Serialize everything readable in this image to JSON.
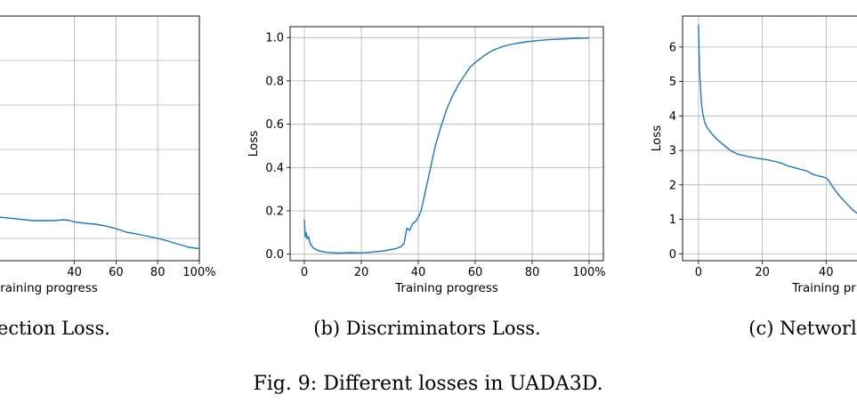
{
  "figure": {
    "caption": "Fig. 9: Different losses in UADA3D."
  },
  "chart_data": [
    {
      "type": "line",
      "title": "",
      "subcaption": "section Loss.",
      "xlabel": "raining progress",
      "ylabel": "",
      "xlim": [
        0,
        100
      ],
      "ylim": [
        0,
        5.5
      ],
      "x_ticks": [
        40,
        60,
        80,
        100
      ],
      "x_tick_labels": [
        "40",
        "60",
        "80",
        "100%"
      ],
      "y_ticks": [],
      "y_tick_labels": [],
      "grid": true,
      "series": [
        {
          "name": "Detection Loss",
          "x": [
            0,
            20,
            30,
            35,
            38,
            40,
            45,
            50,
            55,
            60,
            65,
            70,
            75,
            80,
            85,
            90,
            95,
            100
          ],
          "y": [
            1.0,
            0.9,
            0.9,
            0.92,
            0.9,
            0.87,
            0.84,
            0.82,
            0.78,
            0.72,
            0.64,
            0.6,
            0.55,
            0.5,
            0.44,
            0.37,
            0.3,
            0.27
          ]
        }
      ]
    },
    {
      "type": "line",
      "title": "",
      "subcaption": "(b) Discriminators Loss.",
      "xlabel": "Training progress",
      "ylabel": "Loss",
      "xlim": [
        -5,
        105
      ],
      "ylim": [
        -0.03,
        1.05
      ],
      "x_ticks": [
        0,
        20,
        40,
        60,
        80,
        100
      ],
      "x_tick_labels": [
        "0",
        "20",
        "40",
        "60",
        "80",
        "100%"
      ],
      "y_ticks": [
        0.0,
        0.2,
        0.4,
        0.6,
        0.8,
        1.0
      ],
      "y_tick_labels": [
        "0.0",
        "0.2",
        "0.4",
        "0.6",
        "0.8",
        "1.0"
      ],
      "grid": true,
      "series": [
        {
          "name": "Discriminators Loss",
          "x": [
            0,
            0.3,
            0.6,
            1,
            1.5,
            2,
            3,
            5,
            8,
            12,
            16,
            20,
            24,
            28,
            32,
            34,
            35,
            36,
            37,
            38,
            39,
            40,
            41,
            42,
            44,
            46,
            48,
            50,
            52,
            54,
            56,
            58,
            60,
            63,
            66,
            70,
            74,
            78,
            82,
            86,
            90,
            95,
            100
          ],
          "y": [
            0.16,
            0.08,
            0.1,
            0.07,
            0.08,
            0.05,
            0.03,
            0.015,
            0.008,
            0.005,
            0.007,
            0.006,
            0.01,
            0.015,
            0.025,
            0.035,
            0.05,
            0.12,
            0.11,
            0.14,
            0.15,
            0.17,
            0.2,
            0.26,
            0.38,
            0.5,
            0.59,
            0.67,
            0.73,
            0.78,
            0.82,
            0.86,
            0.885,
            0.915,
            0.94,
            0.96,
            0.972,
            0.98,
            0.986,
            0.99,
            0.993,
            0.996,
            0.998
          ]
        }
      ]
    },
    {
      "type": "line",
      "title": "",
      "subcaption": "(c) Networl",
      "xlabel": "Training pr",
      "ylabel": "Loss",
      "xlim": [
        -5,
        60
      ],
      "ylim": [
        -0.2,
        6.9
      ],
      "x_ticks": [
        0,
        20,
        40
      ],
      "x_tick_labels": [
        "0",
        "20",
        "40"
      ],
      "y_ticks": [
        0,
        1,
        2,
        3,
        4,
        5,
        6
      ],
      "y_tick_labels": [
        "0",
        "1",
        "2",
        "3",
        "4",
        "5",
        "6"
      ],
      "grid": true,
      "series": [
        {
          "name": "Network Loss",
          "x": [
            0,
            0.2,
            0.4,
            0.6,
            0.8,
            1,
            1.3,
            1.6,
            2,
            2.5,
            3,
            4,
            5,
            6,
            8,
            10,
            12,
            15,
            18,
            20,
            22,
            24,
            26,
            28,
            30,
            32,
            34,
            36,
            38,
            40,
            41,
            42,
            44,
            46,
            48,
            50,
            52,
            54
          ],
          "y": [
            6.65,
            5.8,
            5.1,
            4.9,
            4.5,
            4.3,
            4.1,
            3.95,
            3.8,
            3.7,
            3.62,
            3.5,
            3.4,
            3.3,
            3.15,
            3.0,
            2.9,
            2.83,
            2.78,
            2.75,
            2.72,
            2.68,
            2.63,
            2.55,
            2.5,
            2.45,
            2.4,
            2.3,
            2.25,
            2.2,
            2.1,
            1.95,
            1.7,
            1.5,
            1.3,
            1.15,
            1.0,
            0.88
          ]
        }
      ]
    }
  ]
}
